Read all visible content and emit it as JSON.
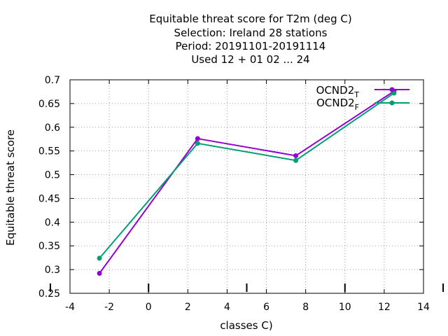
{
  "chart_data": {
    "type": "line",
    "title_lines": [
      "Equitable threat score  for T2m (deg C)",
      "Selection: Ireland     28 stations",
      "Period: 20191101-20191114",
      "Used  12 + 01 02 ... 24"
    ],
    "xlabel": "classes C)",
    "ylabel": "Equitable threat score",
    "xlim": [
      -4,
      14
    ],
    "ylim": [
      0.25,
      0.7
    ],
    "x_ticks": [
      -4,
      -2,
      0,
      2,
      4,
      6,
      8,
      10,
      12,
      14
    ],
    "y_ticks": [
      0.25,
      0.3,
      0.35,
      0.4,
      0.45,
      0.5,
      0.55,
      0.6,
      0.65,
      0.7
    ],
    "x_tick_labels": [
      "-4",
      "-2",
      "0",
      "2",
      "4",
      "6",
      "8",
      "10",
      "12",
      "14"
    ],
    "y_tick_labels": [
      "0.25",
      "0.3",
      "0.35",
      "0.4",
      "0.45",
      "0.5",
      "0.55",
      "0.6",
      "0.65",
      "0.7"
    ],
    "grid": true,
    "legend_position": "top-right",
    "series": [
      {
        "name": "OCND2",
        "name_subscript": "T",
        "color": "#9400d3",
        "x": [
          -2.5,
          2.5,
          7.5,
          12.5
        ],
        "y": [
          0.292,
          0.576,
          0.54,
          0.676
        ]
      },
      {
        "name": "OCND2",
        "name_subscript": "F",
        "color": "#009e73",
        "x": [
          -2.5,
          2.5,
          7.5,
          12.5
        ],
        "y": [
          0.324,
          0.566,
          0.53,
          0.672
        ]
      }
    ],
    "baseline_ticks_x": [
      -5,
      0,
      5,
      10,
      15
    ]
  }
}
